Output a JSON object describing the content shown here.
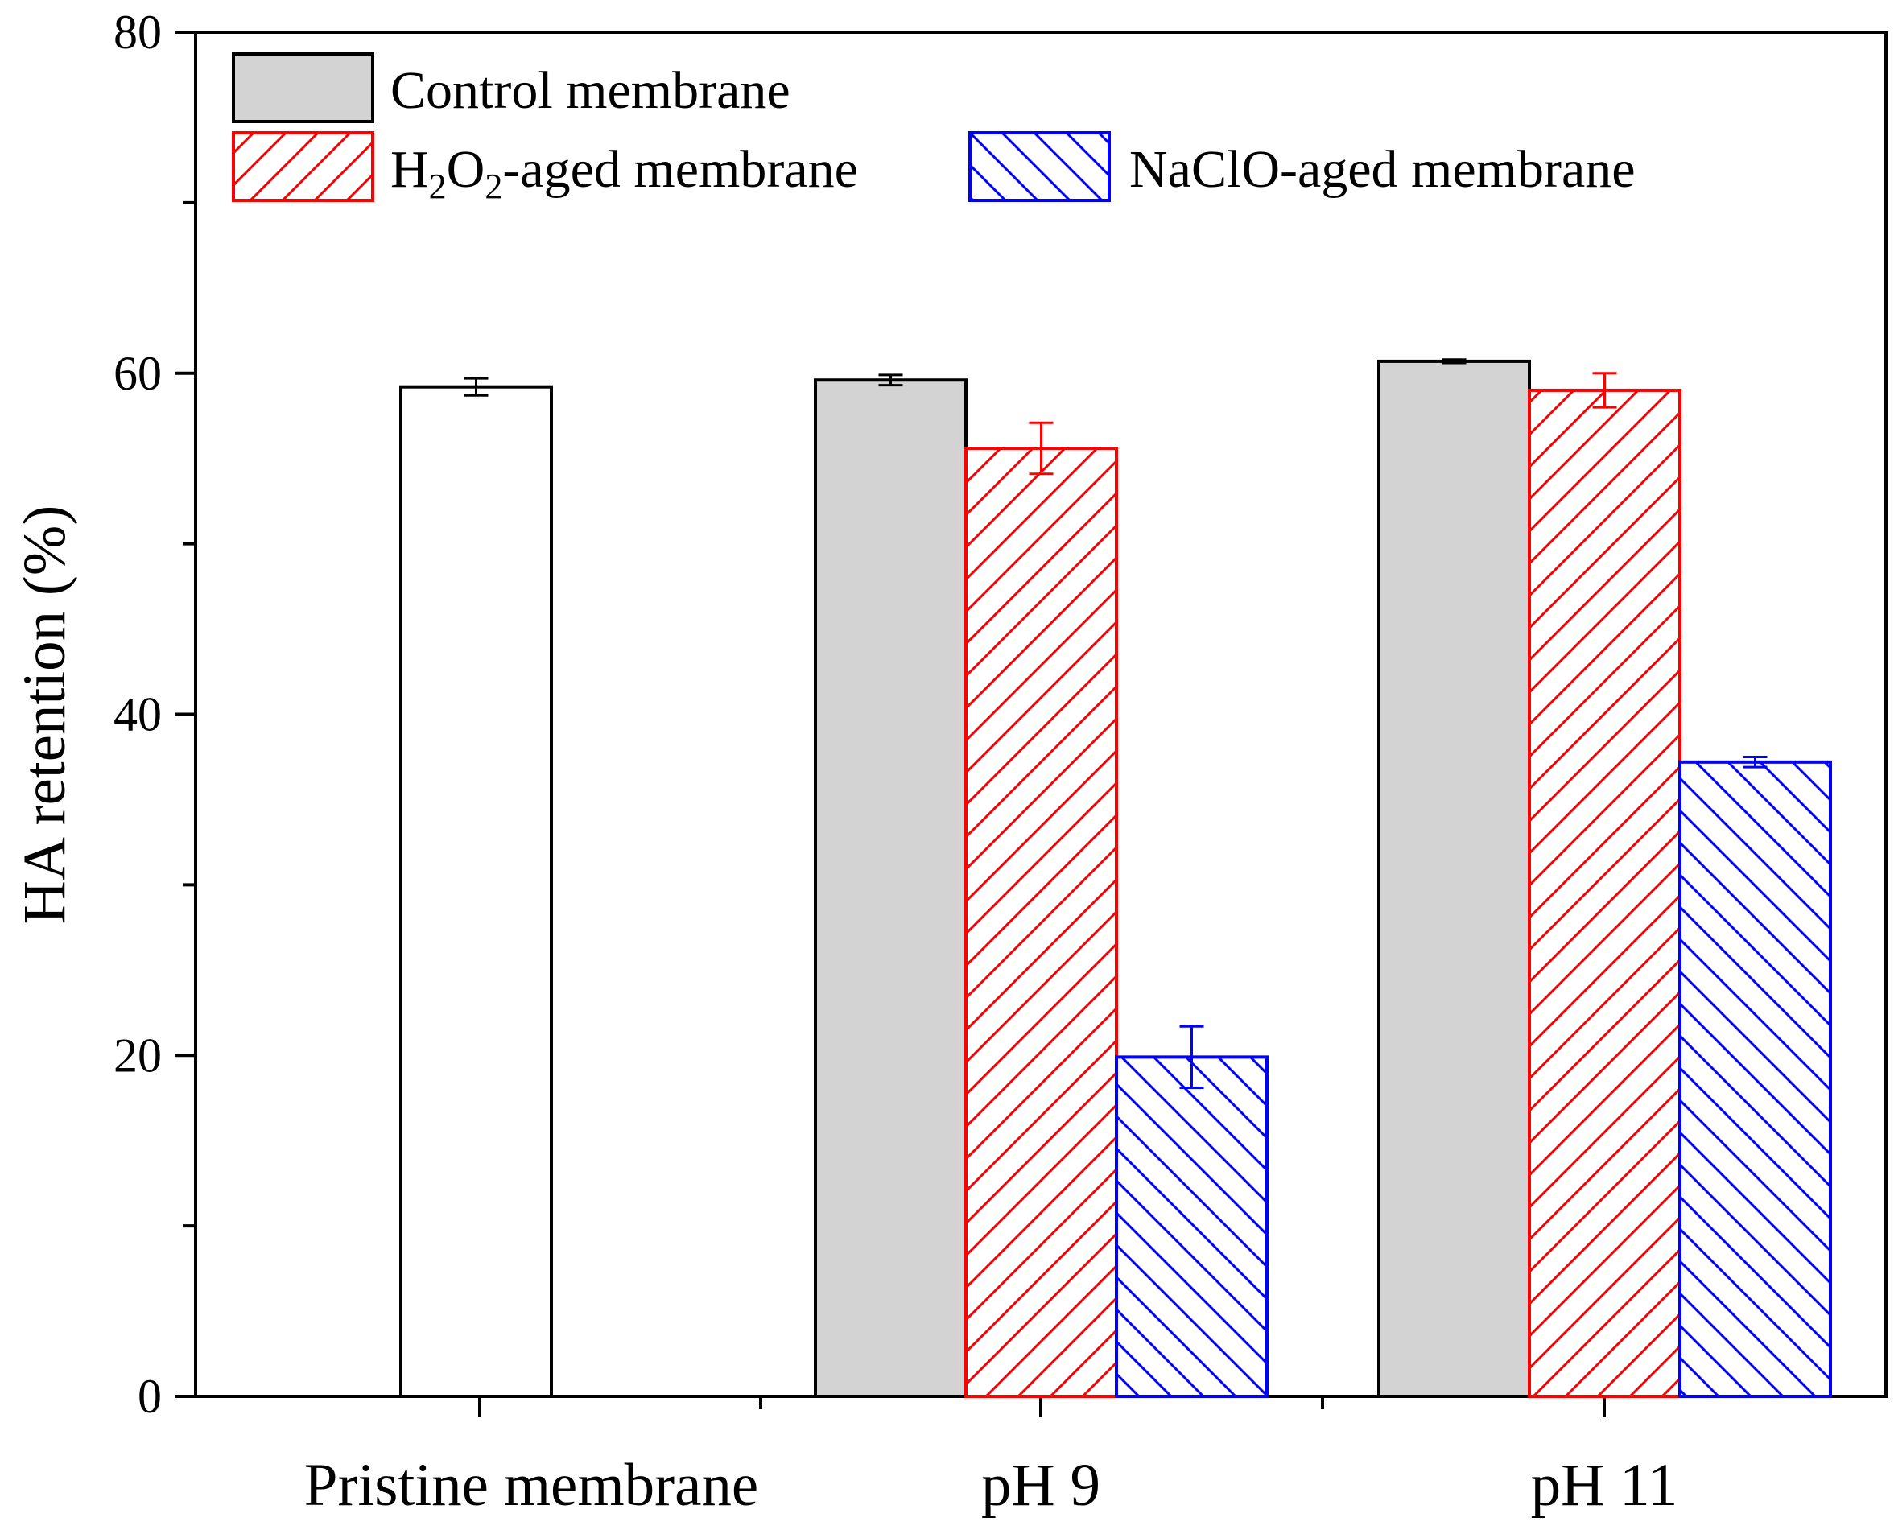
{
  "chart_data": {
    "type": "bar",
    "title": "",
    "xlabel": "",
    "ylabel": "HA retention (%)",
    "ylim": [
      0,
      80
    ],
    "yticks": [
      0,
      20,
      40,
      60,
      80
    ],
    "categories": [
      "Pristine membrane",
      "pH 9",
      "pH 11"
    ],
    "series": [
      {
        "name": "Pristine membrane",
        "color": "#000000",
        "fill": "#ffffff",
        "pattern": "none",
        "show_in_legend": false,
        "values": [
          59.2,
          null,
          null
        ],
        "errors": [
          0.5,
          null,
          null
        ]
      },
      {
        "name": "Control membrane",
        "color": "#000000",
        "fill": "#d3d3d3",
        "pattern": "solid",
        "show_in_legend": true,
        "values": [
          null,
          59.6,
          60.7
        ],
        "errors": [
          null,
          0.3,
          0.1
        ]
      },
      {
        "name": "H2O2-aged membrane",
        "color": "#ff0000",
        "fill": "#ffffff",
        "pattern": "forward-hatch",
        "show_in_legend": true,
        "values": [
          null,
          55.6,
          59.0
        ],
        "errors": [
          null,
          1.5,
          1.0
        ]
      },
      {
        "name": "NaClO-aged membrane",
        "color": "#0000ff",
        "fill": "#ffffff",
        "pattern": "back-hatch",
        "show_in_legend": true,
        "values": [
          null,
          19.9,
          37.2
        ],
        "errors": [
          null,
          1.8,
          0.3
        ]
      }
    ],
    "legend": {
      "placement": "top-left",
      "entries": {
        "control": "Control membrane",
        "h2o2_pre": "H",
        "h2o2_sub1": "2",
        "h2o2_mid": "O",
        "h2o2_sub2": "2",
        "h2o2_post": "-aged membrane",
        "naclo": "NaClO-aged membrane"
      }
    }
  }
}
